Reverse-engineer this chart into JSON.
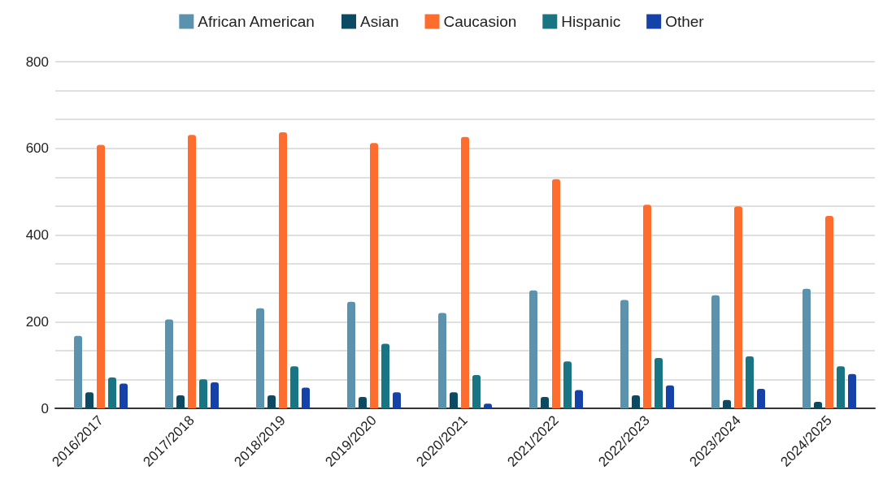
{
  "chart_data": {
    "type": "bar",
    "categories": [
      "2016/2017",
      "2017/2018",
      "2018/2019",
      "2019/2020",
      "2020/2021",
      "2021/2022",
      "2022/2023",
      "2023/2024",
      "2024/2025"
    ],
    "series": [
      {
        "name": "African American",
        "color": "#5b93ae",
        "values": [
          167,
          205,
          231,
          246,
          220,
          272,
          250,
          261,
          276
        ]
      },
      {
        "name": "Asian",
        "color": "#0b4a63",
        "values": [
          37,
          30,
          30,
          26,
          37,
          26,
          30,
          19,
          15
        ]
      },
      {
        "name": "Caucasion",
        "color": "#ff6d2e",
        "values": [
          608,
          631,
          637,
          612,
          626,
          529,
          470,
          466,
          444
        ]
      },
      {
        "name": "Hispanic",
        "color": "#1a7583",
        "values": [
          71,
          67,
          97,
          149,
          77,
          108,
          116,
          120,
          97
        ]
      },
      {
        "name": "Other",
        "color": "#1442a8",
        "values": [
          57,
          60,
          48,
          37,
          11,
          42,
          53,
          45,
          79
        ]
      }
    ],
    "ylim": [
      0,
      800
    ],
    "yticks": [
      0,
      {
        "value": 66.67,
        "label": null
      },
      {
        "value": 133.33,
        "label": null
      },
      200,
      {
        "value": 266.67,
        "label": null
      },
      {
        "value": 333.33,
        "label": null
      },
      400,
      {
        "value": 466.67,
        "label": null
      },
      {
        "value": 533.33,
        "label": null
      },
      600,
      {
        "value": 666.67,
        "label": null
      },
      {
        "value": 733.33,
        "label": null
      },
      800
    ],
    "grid": "y",
    "legend": "top"
  }
}
